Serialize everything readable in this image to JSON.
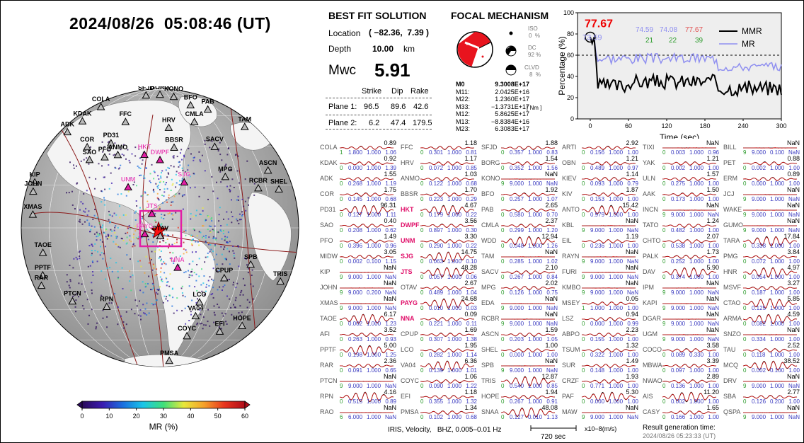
{
  "header": {
    "datetime": "2024/08/26  05:08:46 (UT)"
  },
  "map": {
    "stations_black": [
      {
        "name": "COLA",
        "ang": -26,
        "r": 0.99
      },
      {
        "name": "KDAK",
        "ang": -36,
        "r": 0.97
      },
      {
        "name": "ADK",
        "ang": -44,
        "r": 0.98
      },
      {
        "name": "SFJD",
        "ang": -6,
        "r": 0.98
      },
      {
        "name": "BORG",
        "ang": 0,
        "r": 0.98
      },
      {
        "name": "KONO",
        "ang": 6,
        "r": 0.97
      },
      {
        "name": "FFC",
        "ang": -18,
        "r": 0.82
      },
      {
        "name": "HRV",
        "ang": 5,
        "r": 0.74
      },
      {
        "name": "BFO",
        "ang": 14,
        "r": 0.93
      },
      {
        "name": "COR",
        "ang": -42,
        "r": 0.8
      },
      {
        "name": "PD31",
        "ang": -30,
        "r": 0.72
      },
      {
        "name": "SAO",
        "ang": -46,
        "r": 0.72
      },
      {
        "name": "PFO",
        "ang": -38,
        "r": 0.66
      },
      {
        "name": "ANMO",
        "ang": -30,
        "r": 0.62
      },
      {
        "name": "PAB",
        "ang": 22,
        "r": 0.94
      },
      {
        "name": "CMLA",
        "ang": 18,
        "r": 0.82
      },
      {
        "name": "BBSR",
        "ang": 10,
        "r": 0.6
      },
      {
        "name": "TAM",
        "ang": 40,
        "r": 0.97
      },
      {
        "name": "KIP",
        "ang": -70,
        "r": 0.98
      },
      {
        "name": "JOHN",
        "ang": -74,
        "r": 0.97
      },
      {
        "name": "SACV",
        "ang": 34,
        "r": 0.72
      },
      {
        "name": "XMAS",
        "ang": -84,
        "r": 0.94
      },
      {
        "name": "MPG",
        "ang": 52,
        "r": 0.61
      },
      {
        "name": "TAOE",
        "ang": -102,
        "r": 0.88
      },
      {
        "name": "RCBR",
        "ang": 68,
        "r": 0.78
      },
      {
        "name": "ASCN",
        "ang": 62,
        "r": 0.9
      },
      {
        "name": "SHEL",
        "ang": 72,
        "r": 0.92
      },
      {
        "name": "PPTF",
        "ang": -112,
        "r": 0.93
      },
      {
        "name": "RAR",
        "ang": -116,
        "r": 0.97
      },
      {
        "name": "PTCN",
        "ang": -130,
        "r": 0.84
      },
      {
        "name": "RPN",
        "ang": -146,
        "r": 0.7
      },
      {
        "name": "SPB",
        "ang": 112,
        "r": 0.72
      },
      {
        "name": "CPUP",
        "ang": 128,
        "r": 0.6
      },
      {
        "name": "TRIS",
        "ang": 114,
        "r": 0.97
      },
      {
        "name": "LCO",
        "ang": 152,
        "r": 0.62
      },
      {
        "name": "VA04",
        "ang": 158,
        "r": 0.7
      },
      {
        "name": "COYC",
        "ang": 166,
        "r": 0.82
      },
      {
        "name": "EFI",
        "ang": 150,
        "r": 0.88
      },
      {
        "name": "HOPE",
        "ang": 140,
        "r": 0.94
      },
      {
        "name": "PMSA",
        "ang": 176,
        "r": 0.98
      },
      {
        "name": "OTAV",
        "ang": 178,
        "r": 0.06
      }
    ],
    "stations_red": [
      {
        "name": "HKT",
        "ang": -12,
        "r": 0.55
      },
      {
        "name": "DWPF",
        "ang": 0,
        "r": 0.5
      },
      {
        "name": "UNM",
        "ang": -38,
        "r": 0.38
      },
      {
        "name": "SJG",
        "ang": 28,
        "r": 0.38
      },
      {
        "name": "JTS",
        "ang": -30,
        "r": 0.12
      },
      {
        "name": "PAYG",
        "ang": -112,
        "r": 0.12
      },
      {
        "name": "NNA",
        "ang": 156,
        "r": 0.32
      }
    ]
  },
  "colorbar": {
    "ticks": [
      "0",
      "10",
      "20",
      "30",
      "40",
      "50",
      "60"
    ],
    "label": "MR (%)",
    "colors": [
      "#2a0a5a",
      "#3a1bb0",
      "#1b6fe0",
      "#19c6e8",
      "#3ee07a",
      "#e8e83a",
      "#f5a02a",
      "#e8341e",
      "#b00d1a"
    ]
  },
  "best_fit": {
    "title": "BEST FIT SOLUTION",
    "location_label": "Location",
    "location_value": "( −82.36,  7.39 )",
    "depth_label": "Depth",
    "depth_value": "10.00",
    "depth_unit": "km",
    "mwc_label": "Mwc",
    "mwc_value": "5.91",
    "col_strike": "Strike",
    "col_dip": "Dip",
    "col_rake": "Rake",
    "planes": [
      {
        "label": "Plane 1:",
        "strike": "96.5",
        "dip": "89.6",
        "rake": "42.6"
      },
      {
        "label": "Plane 2:",
        "strike": "6.2",
        "dip": "47.4",
        "rake": "179.5"
      }
    ]
  },
  "focal": {
    "title": "FOCAL MECHANISM",
    "iso_label": "ISO",
    "iso_value": "0  %",
    "dc_label": "DC",
    "dc_value": "92 %",
    "clvd_label": "CLVD",
    "clvd_value": "8  %",
    "moments": [
      {
        "k": "M0",
        "v": "9.3008E+17"
      },
      {
        "k": "M11:",
        "v": "2.0425E+16"
      },
      {
        "k": "M22:",
        "v": "1.2360E+17"
      },
      {
        "k": "M33:",
        "v": "−1.3731E+17"
      },
      {
        "k": "M12:",
        "v": "5.8625E+17"
      },
      {
        "k": "M13:",
        "v": "−8.8384E+16"
      },
      {
        "k": "M23:",
        "v": "6.3083E+17"
      }
    ],
    "unit": "[ Nm ]"
  },
  "timeseries": {
    "ylabel": "Percentage (%)",
    "xlabel": "Time (sec)",
    "yticks": [
      "0",
      "20",
      "40",
      "60",
      "80",
      "100"
    ],
    "xticks": [
      "0",
      "60",
      "120",
      "180",
      "240",
      "300"
    ],
    "legend": [
      "MMR",
      "MR"
    ],
    "peak_label": "77.67",
    "peak_under": "73.59",
    "top_blue": [
      "74.59",
      "74.08"
    ],
    "top_red": "77.67",
    "top_green": [
      "21",
      "22",
      "39"
    ]
  },
  "waveforms": {
    "columns": [
      [
        [
          "COLA",
          "0.89",
          "1.800",
          "1.000",
          "1.06"
        ],
        [
          "KDAK",
          "0.92",
          "0.000",
          "1.000",
          "1.39"
        ],
        [
          "ADK",
          "1.55",
          "0.268",
          "1.000",
          "1.19"
        ],
        [
          "COR",
          "1.75",
          "0.145",
          "1.000",
          "0.68"
        ],
        [
          "PD31",
          "96.31",
          "0.127",
          "1.000",
          "1.11"
        ],
        [
          "SAO",
          "0.40",
          "0.208",
          "1.000",
          "0.62"
        ],
        [
          "PFO",
          "1.49",
          "0.396",
          "1.000",
          "0.96"
        ],
        [
          "MIDW",
          "3.05",
          "0.002",
          "0.100",
          "1.15"
        ],
        [
          "KIP",
          "NaN",
          "9.000",
          "1.000",
          "NaN"
        ],
        [
          "JOHN",
          "NaN",
          "9.000",
          "0.200",
          "NaN"
        ],
        [
          "XMAS",
          "NaN",
          "9.000",
          "1.000",
          "NaN"
        ],
        [
          "TAOE",
          "6.17",
          "0.002",
          "1.000",
          "1.23"
        ],
        [
          "AFI",
          "3.52",
          "0.263",
          "1.000",
          "0.93"
        ],
        [
          "PPTF",
          "5.00",
          "0.198",
          "1.000",
          "1.25"
        ],
        [
          "RAR",
          "2.36",
          "0.091",
          "1.000",
          "0.65"
        ],
        [
          "PTCN",
          "NaN",
          "9.000",
          "1.000",
          "NaN"
        ],
        [
          "RPN",
          "4.16",
          "0.515",
          "1.000",
          "0.89"
        ],
        [
          "RAO",
          "NaN",
          "6.000",
          "1.000",
          "NaN"
        ]
      ],
      [
        [
          "FFC",
          "1.18",
          "0.301",
          "1.000",
          "0.81"
        ],
        [
          "HRV",
          "1.17",
          "0.072",
          "1.000",
          "0.85"
        ],
        [
          "ANMO",
          "1.03",
          "0.122",
          "1.000",
          "0.68"
        ],
        [
          "BBSR",
          "1.70",
          "0.223",
          "1.000",
          "0.29"
        ],
        [
          "HKT",
          "4.67",
          "0.179",
          "1.000",
          "0.22"
        ],
        [
          "DWPF",
          "3.56",
          "0.897",
          "1.000",
          "0.30"
        ],
        [
          "UNM",
          "3.30",
          "0.290",
          "1.000",
          "0.22"
        ],
        [
          "SJG",
          "14.75",
          "0.063",
          "1.000",
          "0.10"
        ],
        [
          "JTS",
          "48.28",
          "0.057",
          "1.000",
          "0.06"
        ],
        [
          "OTAV",
          "2.67",
          "0.489",
          "1.000",
          "1.04"
        ],
        [
          "PAYG",
          "24.68",
          "0.010",
          "1.000",
          "0.03"
        ],
        [
          "NNA",
          "0.09",
          "0.221",
          "1.000",
          "0.11"
        ],
        [
          "CPUP",
          "1.69",
          "0.307",
          "1.000",
          "1.38"
        ],
        [
          "LCO",
          "1.95",
          "0.282",
          "1.000",
          "1.14"
        ],
        [
          "VA04",
          "6.36",
          "0.139",
          "1.000",
          "1.01"
        ],
        [
          "COYC",
          "1.06",
          "0.090",
          "1.000",
          "1.22"
        ],
        [
          "EFI",
          "1.18",
          "0.355",
          "1.000",
          "1.32"
        ],
        [
          "PMSA",
          "1.34",
          "0.102",
          "1.000",
          "0.68"
        ]
      ],
      [
        [
          "SFJD",
          "1.88",
          "0.357",
          "1.000",
          "0.83"
        ],
        [
          "BORG",
          "1.54",
          "0.352",
          "1.000",
          "1.56"
        ],
        [
          "KONO",
          "NaN",
          "9.000",
          "1.000",
          "NaN"
        ],
        [
          "BFO",
          "1.92",
          "0.257",
          "1.000",
          "1.07"
        ],
        [
          "PAB",
          "2.65",
          "0.580",
          "1.000",
          "0.70"
        ],
        [
          "CMLA",
          "2.37",
          "0.299",
          "1.000",
          "1.20"
        ],
        [
          "WDD",
          "12.94",
          "0.048",
          "1.000",
          "1.26"
        ],
        [
          "TAM",
          "NaN",
          "0.285",
          "1.000",
          "1.02"
        ],
        [
          "SACV",
          "2.10",
          "0.267",
          "1.000",
          "0.84"
        ],
        [
          "MPG",
          "2.02",
          "0.126",
          "1.000",
          "0.75"
        ],
        [
          "EDA",
          "NaN",
          "9.000",
          "1.000",
          "NaN"
        ],
        [
          "RCBR",
          "NaN",
          "9.000",
          "1.000",
          "NaN"
        ],
        [
          "ASCN",
          "1.59",
          "0.203",
          "1.000",
          "1.05"
        ],
        [
          "SHEL",
          "1.00",
          "0.000",
          "1.000",
          "1.00"
        ],
        [
          "SPB",
          "NaN",
          "9.000",
          "1.000",
          "NaN"
        ],
        [
          "TRIS",
          "12.87",
          "0.540",
          "1.000",
          "0.85"
        ],
        [
          "HOPE",
          "1.94",
          "0.267",
          "1.000",
          "0.91"
        ],
        [
          "SNAA",
          "48.08",
          "0.127",
          "0.010",
          "1.13"
        ]
      ],
      [
        [
          "ARTI",
          "2.92",
          "0.156",
          "1.000",
          "1.00"
        ],
        [
          "OBN",
          "1.21",
          "0.489",
          "1.000",
          "0.97"
        ],
        [
          "KIEV",
          "1.14",
          "0.093",
          "1.000",
          "0.79"
        ],
        [
          "KIV",
          "1.87",
          "0.153",
          "1.000",
          "1.00"
        ],
        [
          "ANTO",
          "15.42",
          "0.979",
          "1.000",
          "1.00"
        ],
        [
          "KBL",
          "NaN",
          "9.000",
          "1.000",
          "NaN"
        ],
        [
          "EIL",
          "1.19",
          "0.236",
          "1.000",
          "1.00"
        ],
        [
          "RAYN",
          "NaN",
          "9.000",
          "1.000",
          "NaN"
        ],
        [
          "FURI",
          "NaN",
          "9.000",
          "1.000",
          "NaN"
        ],
        [
          "KMBO",
          "NaN",
          "9.000",
          "1.000",
          "NaN"
        ],
        [
          "MSEY",
          "0.05",
          "1.000",
          "1.000",
          "1.00"
        ],
        [
          "LSZ",
          "0.94",
          "0.000",
          "1.000",
          "0.99"
        ],
        [
          "ABPO",
          "2.23",
          "0.155",
          "1.000",
          "1.00"
        ],
        [
          "TSUM",
          "1.32",
          "0.322",
          "1.000",
          "1.00"
        ],
        [
          "SUR",
          "1.49",
          "0.148",
          "1.000",
          "1.00"
        ],
        [
          "CRZF",
          "1.93",
          "0.771",
          "1.000",
          "1.00"
        ],
        [
          "PAF",
          "5.30",
          "0.000",
          "1.000",
          "1.00"
        ],
        [
          "MAW",
          "NaN",
          "9.000",
          "1.000",
          "NaN"
        ]
      ],
      [
        [
          "TIXI",
          "NaN",
          "0.003",
          "1.000",
          "0.96"
        ],
        [
          "YAK",
          "1.21",
          "0.002",
          "1.000",
          "1.00"
        ],
        [
          "ULN",
          "1.57",
          "0.275",
          "1.000",
          "1.00"
        ],
        [
          "AAK",
          "1.50",
          "0.173",
          "1.000",
          "1.00"
        ],
        [
          "INCN",
          "NaN",
          "9.000",
          "1.000",
          "NaN"
        ],
        [
          "TATO",
          "1.24",
          "0.482",
          "1.000",
          "1.00"
        ],
        [
          "CHTO",
          "2.07",
          "0.538",
          "1.000",
          "1.00"
        ],
        [
          "PALK",
          "1.73",
          "0.252",
          "1.000",
          "1.00"
        ],
        [
          "DAV",
          "5.90",
          "0.374",
          "1.000",
          "1.00"
        ],
        [
          "IPM",
          "NaN",
          "9.000",
          "1.000",
          "NaN"
        ],
        [
          "KAPI",
          "NaN",
          "9.000",
          "1.000",
          "NaN"
        ],
        [
          "DGAR",
          "NaN",
          "9.000",
          "1.000",
          "NaN"
        ],
        [
          "UGM",
          "NaN",
          "9.000",
          "1.000",
          "NaN"
        ],
        [
          "COCO",
          "3.58",
          "0.089",
          "0.330",
          "1.00"
        ],
        [
          "MBWA",
          "3.39",
          "0.097",
          "1.000",
          "1.00"
        ],
        [
          "NWAO",
          "2.89",
          "0.136",
          "1.000",
          "1.00"
        ],
        [
          "AIS",
          "11.20",
          "0.002",
          "1.000",
          "1.00"
        ],
        [
          "CASY",
          "1.65",
          "0.166",
          "1.000",
          "1.00"
        ]
      ],
      [
        [
          "BILL",
          "NaN",
          "9.000",
          "0.100",
          "NaN"
        ],
        [
          "PET",
          "0.88",
          "0.002",
          "1.000",
          "1.00"
        ],
        [
          "ERM",
          "0.89",
          "0.000",
          "1.000",
          "1.00"
        ],
        [
          "JCJ",
          "NaN",
          "9.000",
          "1.000",
          "NaN"
        ],
        [
          "WAKE",
          "NaN",
          "9.000",
          "1.000",
          "NaN"
        ],
        [
          "GUMO",
          "NaN",
          "9.000",
          "1.000",
          "NaN"
        ],
        [
          "TARA",
          "17.84",
          "0.338",
          "1.000",
          "1.00"
        ],
        [
          "PMG",
          "3.84",
          "0.072",
          "1.000",
          "1.00"
        ],
        [
          "HNR",
          "4.97",
          "0.054",
          "1.000",
          "1.00"
        ],
        [
          "MSVF",
          "3.27",
          "0.187",
          "1.000",
          "1.00"
        ],
        [
          "CTAO",
          "5.85",
          "0.125",
          "1.000",
          "1.00"
        ],
        [
          "ARMA",
          "4.59",
          "0.082",
          "1.000",
          "1.00"
        ],
        [
          "SNZO",
          "NaN",
          "0.334",
          "1.000",
          "1.00"
        ],
        [
          "TAU",
          "2.52",
          "0.118",
          "1.000",
          "1.00"
        ],
        [
          "MCQ",
          "38.52",
          "0.002",
          "0.100",
          "1.00"
        ],
        [
          "DRV",
          "NaN",
          "9.000",
          "1.000",
          "NaN"
        ],
        [
          "SBA",
          "2.77",
          "0.126",
          "0.200",
          "1.00"
        ],
        [
          "QSPA",
          "NaN",
          "9.000",
          "1.000",
          "NaN"
        ]
      ]
    ]
  },
  "footer": {
    "filter": "IRIS, Velocity,   BHZ, 0.005–0.01 Hz",
    "scale": "720 sec",
    "amp": "x10−8(m/s)",
    "gen_label": "Result generation time:",
    "gen_time": "2024/08/26 05:23:33 (UT)"
  }
}
